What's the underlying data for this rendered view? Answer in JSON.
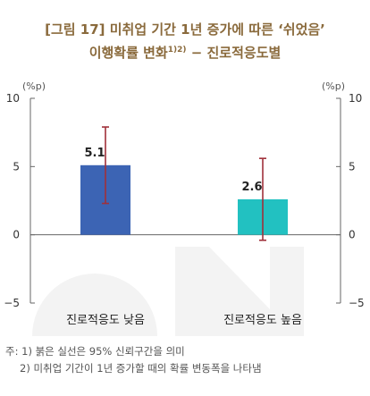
{
  "title": {
    "line1": "[그림 17] 미취업 기간 1년 증가에 따른 ‘쉬었음’",
    "line2_main": "이행확률 변화",
    "line2_sup": "1)2)",
    "line2_tail": " − 진로적응도별"
  },
  "chart_data": {
    "type": "bar",
    "categories": [
      "진로적응도 낮음",
      "진로적응도 높음"
    ],
    "values": [
      5.1,
      2.6
    ],
    "value_labels": [
      "5.1",
      "2.6"
    ],
    "ci": [
      [
        2.3,
        7.9
      ],
      [
        -0.4,
        5.6
      ]
    ],
    "bar_colors": [
      "#3c64b4",
      "#22c1c1"
    ],
    "ci_color": "#a0303a",
    "ylim": [
      -5,
      10
    ],
    "yticks": [
      10,
      5,
      0,
      -5
    ],
    "ytick_labels": [
      "10",
      "5",
      "0",
      "−5"
    ],
    "left_unit": "(%p)",
    "right_unit": "(%p)",
    "grid": false
  },
  "notes": {
    "prefix": "주:",
    "items": [
      "1) 붉은 실선은 95% 신뢰구간을 의미",
      "2) 미취업 기간이 1년 증가할 때의 확률 변동폭을 나타냄"
    ]
  }
}
